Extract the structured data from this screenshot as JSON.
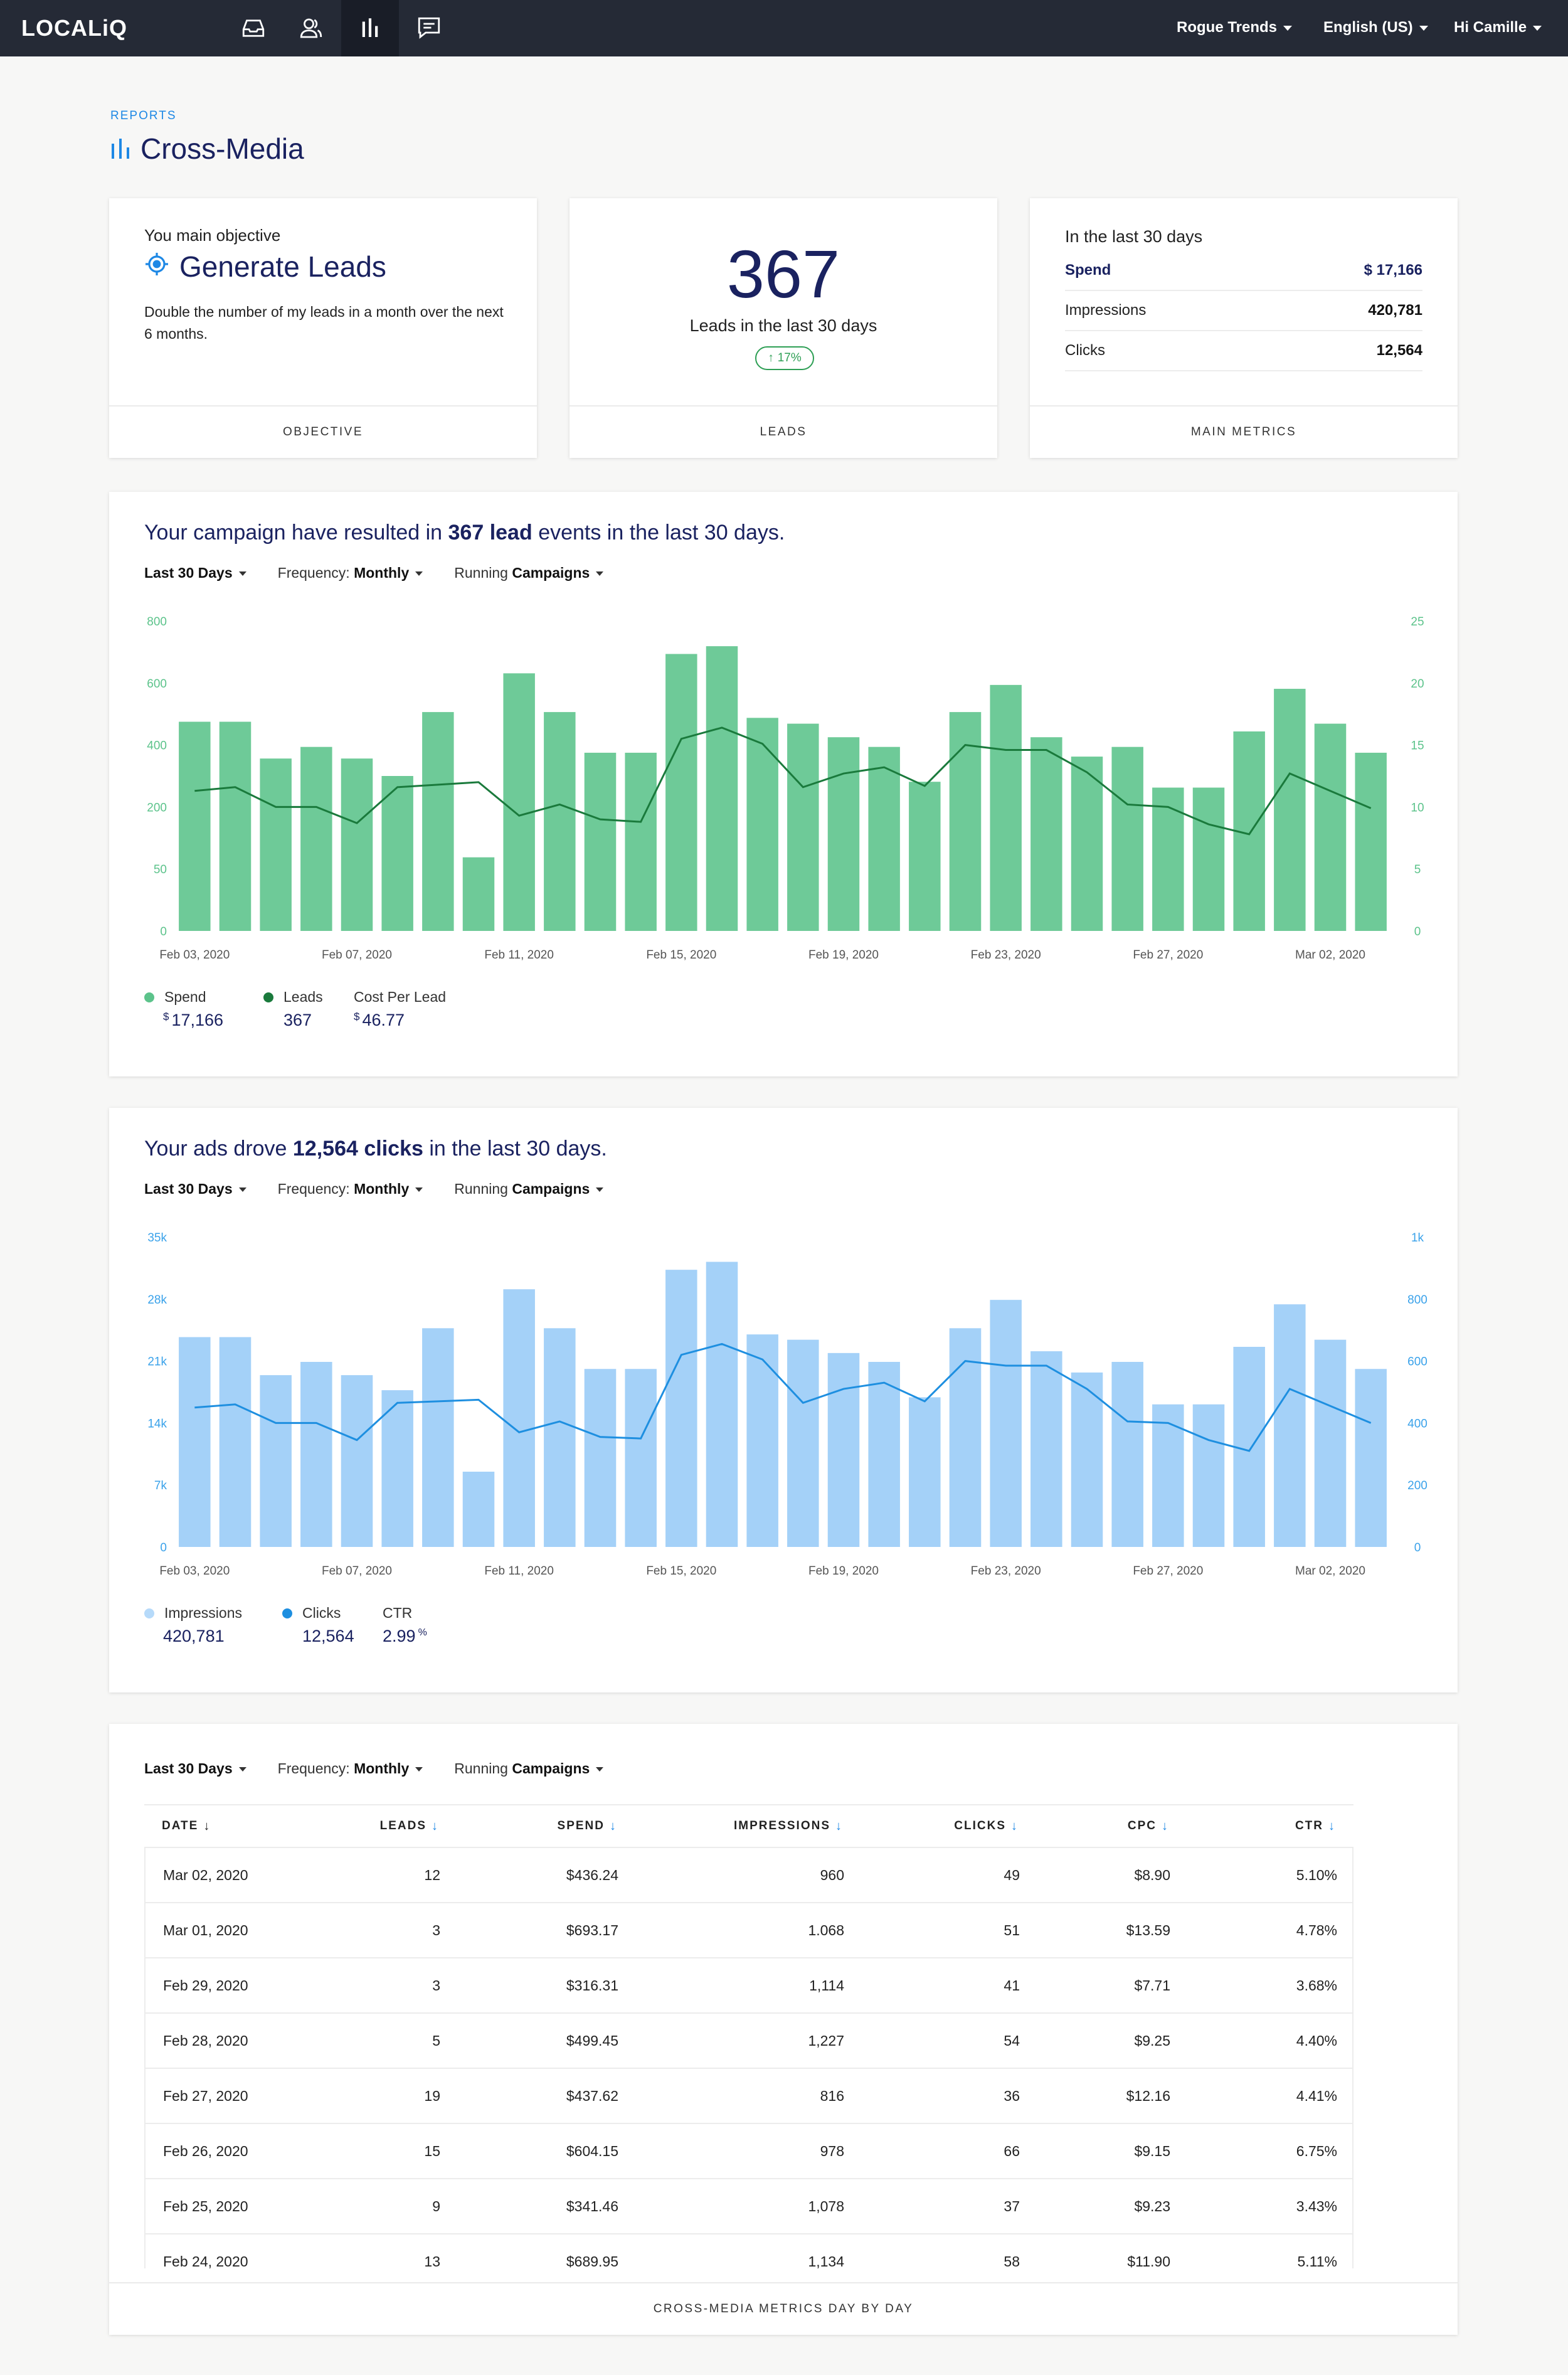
{
  "nav": {
    "logo": "LOCALiQ",
    "account": "Rogue Trends",
    "language": "English (US)",
    "greeting": "Hi Camille"
  },
  "header": {
    "section": "REPORTS",
    "title": "Cross-Media"
  },
  "objective_card": {
    "label": "You main objective",
    "title": "Generate Leads",
    "description": "Double the number of my leads in a month over the next 6 months.",
    "footer": "OBJECTIVE"
  },
  "leads_card": {
    "value": "367",
    "subtitle": "Leads in the last 30 days",
    "change": "17%",
    "footer": "LEADS"
  },
  "metrics_card": {
    "title": "In the last 30 days",
    "rows": [
      {
        "label": "Spend",
        "value": "$ 17,166"
      },
      {
        "label": "Impressions",
        "value": "420,781"
      },
      {
        "label": "Clicks",
        "value": "12,564"
      }
    ],
    "footer": "MAIN METRICS"
  },
  "filters": {
    "range": "Last 30 Days",
    "frequency_label": "Frequency:",
    "frequency_value": "Monthly",
    "running_label": "Running",
    "running_value": "Campaigns"
  },
  "colors": {
    "leads_bar": "#5cc38b",
    "leads_bar_light": "#d7efe0",
    "leads_line": "#1a7a3c",
    "leads_axis": "#5cc38b",
    "clicks_bar": "#9ccdf7",
    "clicks_bar_light": "#cfe6fb",
    "clicks_line": "#1e8fe0",
    "clicks_axis": "#3aa2ea"
  },
  "lead_section": {
    "prefix": "Your campaign have resulted in",
    "highlight": "367 lead",
    "suffix": "events in the last 30 days.",
    "legend": [
      {
        "name": "Spend",
        "currency": "$",
        "value": "17,166",
        "color": "#5cc38b"
      },
      {
        "name": "Leads",
        "currency": "",
        "value": "367",
        "color": "#1a7a3c"
      },
      {
        "name": "Cost Per Lead",
        "currency": "$",
        "value": "46.77",
        "color": ""
      }
    ]
  },
  "clicks_section": {
    "prefix": "Your ads drove",
    "highlight": "12,564 clicks",
    "suffix": "in the last 30 days.",
    "legend": [
      {
        "name": "Impressions",
        "value": "420,781",
        "unit": "",
        "color": "#b6dafa"
      },
      {
        "name": "Clicks",
        "value": "12,564",
        "unit": "",
        "color": "#1e8fe0"
      },
      {
        "name": "CTR",
        "value": "2.99",
        "unit": "%",
        "color": ""
      }
    ]
  },
  "chart_data": [
    {
      "type": "bar",
      "x_tick_labels": [
        "Feb 03, 2020",
        "Feb 07, 2020",
        "Feb 11, 2020",
        "Feb 15, 2020",
        "Feb 19, 2020",
        "Feb 23, 2020",
        "Feb 27, 2020",
        "Mar 02, 2020"
      ],
      "y_left_ticks": [
        "800",
        "600",
        "400",
        "200",
        "50",
        "0"
      ],
      "y_right_ticks": [
        "25",
        "20",
        "15",
        "10",
        "5",
        "0"
      ],
      "series": [
        {
          "name": "Spend",
          "type": "bar",
          "values": [
            540,
            540,
            445,
            475,
            445,
            400,
            565,
            190,
            665,
            565,
            460,
            460,
            715,
            735,
            550,
            535,
            500,
            475,
            385,
            565,
            635,
            500,
            450,
            475,
            370,
            370,
            515,
            625,
            535,
            460
          ]
        },
        {
          "name": "Leads",
          "type": "line",
          "axis": "right",
          "values": [
            11.3,
            11.6,
            10,
            10,
            8.7,
            11.6,
            11.8,
            12,
            9.3,
            10.2,
            9,
            8.8,
            15.5,
            16.4,
            15.1,
            11.6,
            12.7,
            13.2,
            11.7,
            15,
            14.6,
            14.6,
            12.8,
            10.2,
            10,
            8.6,
            7.8,
            12.7,
            11.3,
            9.9
          ]
        }
      ],
      "ylim_left": [
        0,
        800
      ],
      "ylim_right": [
        0,
        25
      ]
    },
    {
      "type": "bar",
      "x_tick_labels": [
        "Feb 03, 2020",
        "Feb 07, 2020",
        "Feb 11, 2020",
        "Feb 15, 2020",
        "Feb 19, 2020",
        "Feb 23, 2020",
        "Feb 27, 2020",
        "Mar 02, 2020"
      ],
      "y_left_ticks": [
        "35k",
        "28k",
        "21k",
        "14k",
        "7k",
        "0"
      ],
      "y_right_ticks": [
        "1k",
        "800",
        "600",
        "400",
        "200",
        "0"
      ],
      "series": [
        {
          "name": "Impressions",
          "type": "bar",
          "values": [
            23700,
            23700,
            19400,
            20900,
            19400,
            17700,
            24700,
            8500,
            29100,
            24700,
            20100,
            20100,
            31300,
            32200,
            24000,
            23400,
            21900,
            20900,
            16900,
            24700,
            27900,
            22100,
            19700,
            20900,
            16100,
            16100,
            22600,
            27400,
            23400,
            20100
          ]
        },
        {
          "name": "Clicks",
          "type": "line",
          "axis": "right",
          "values": [
            450,
            460,
            400,
            400,
            345,
            465,
            470,
            475,
            370,
            405,
            355,
            350,
            620,
            655,
            605,
            465,
            510,
            530,
            470,
            600,
            585,
            585,
            510,
            405,
            400,
            345,
            310,
            510,
            455,
            400
          ]
        }
      ],
      "ylim_left": [
        0,
        35000
      ],
      "ylim_right": [
        0,
        1000
      ]
    }
  ],
  "table": {
    "columns": [
      "DATE",
      "LEADS",
      "SPEND",
      "IMPRESSIONS",
      "CLICKS",
      "CPC",
      "CTR"
    ],
    "rows": [
      [
        "Mar 02, 2020",
        "12",
        "$436.24",
        "960",
        "49",
        "$8.90",
        "5.10%"
      ],
      [
        "Mar 01, 2020",
        "3",
        "$693.17",
        "1.068",
        "51",
        "$13.59",
        "4.78%"
      ],
      [
        "Feb 29, 2020",
        "3",
        "$316.31",
        "1,114",
        "41",
        "$7.71",
        "3.68%"
      ],
      [
        "Feb 28, 2020",
        "5",
        "$499.45",
        "1,227",
        "54",
        "$9.25",
        "4.40%"
      ],
      [
        "Feb 27, 2020",
        "19",
        "$437.62",
        "816",
        "36",
        "$12.16",
        "4.41%"
      ],
      [
        "Feb 26, 2020",
        "15",
        "$604.15",
        "978",
        "66",
        "$9.15",
        "6.75%"
      ],
      [
        "Feb 25, 2020",
        "9",
        "$341.46",
        "1,078",
        "37",
        "$9.23",
        "3.43%"
      ],
      [
        "Feb 24, 2020",
        "13",
        "$689.95",
        "1,134",
        "58",
        "$11.90",
        "5.11%"
      ]
    ],
    "footer": "CROSS-MEDIA METRICS DAY BY DAY"
  }
}
